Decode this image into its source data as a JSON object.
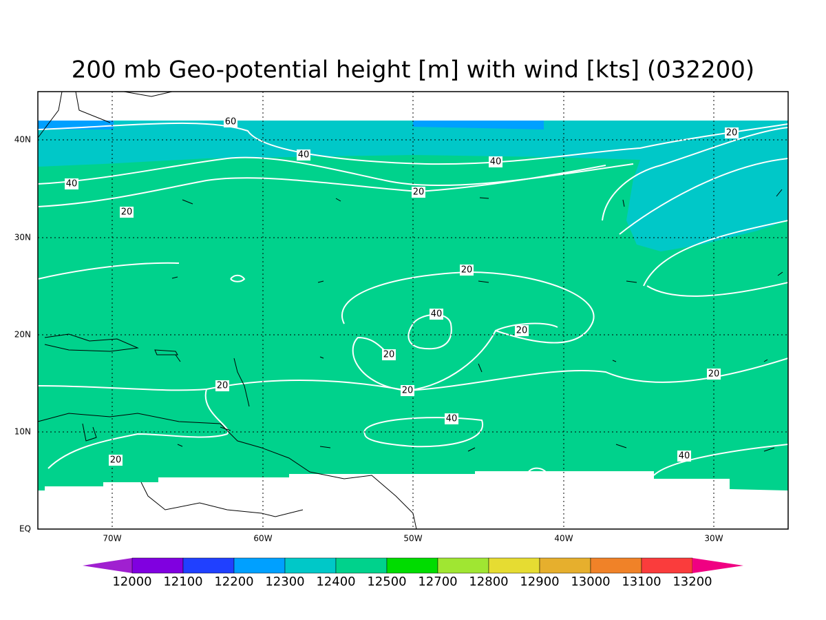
{
  "title": "200 mb Geo-potential height [m] with wind [kts] (032200)",
  "map": {
    "lon_labels": [
      "70W",
      "60W",
      "50W",
      "40W",
      "30W"
    ],
    "lat_labels": [
      "EQ",
      "10N",
      "20N",
      "30N",
      "40N"
    ]
  },
  "contour_labels": [
    "60",
    "40",
    "40",
    "40",
    "20",
    "20",
    "20",
    "20",
    "40",
    "20",
    "20",
    "20",
    "20",
    "20",
    "40",
    "20",
    "40"
  ],
  "colorbar": {
    "levels": [
      12000,
      12100,
      12200,
      12300,
      12400,
      12500,
      12700,
      12800,
      12900,
      13000,
      13100,
      13200
    ],
    "colors": [
      "#a020d0",
      "#8000e0",
      "#2040ff",
      "#00a0ff",
      "#00c8c8",
      "#00d28c",
      "#00dc00",
      "#a0e632",
      "#e6dc32",
      "#e6af2d",
      "#f08228",
      "#fa3c3c",
      "#f00082"
    ]
  }
}
